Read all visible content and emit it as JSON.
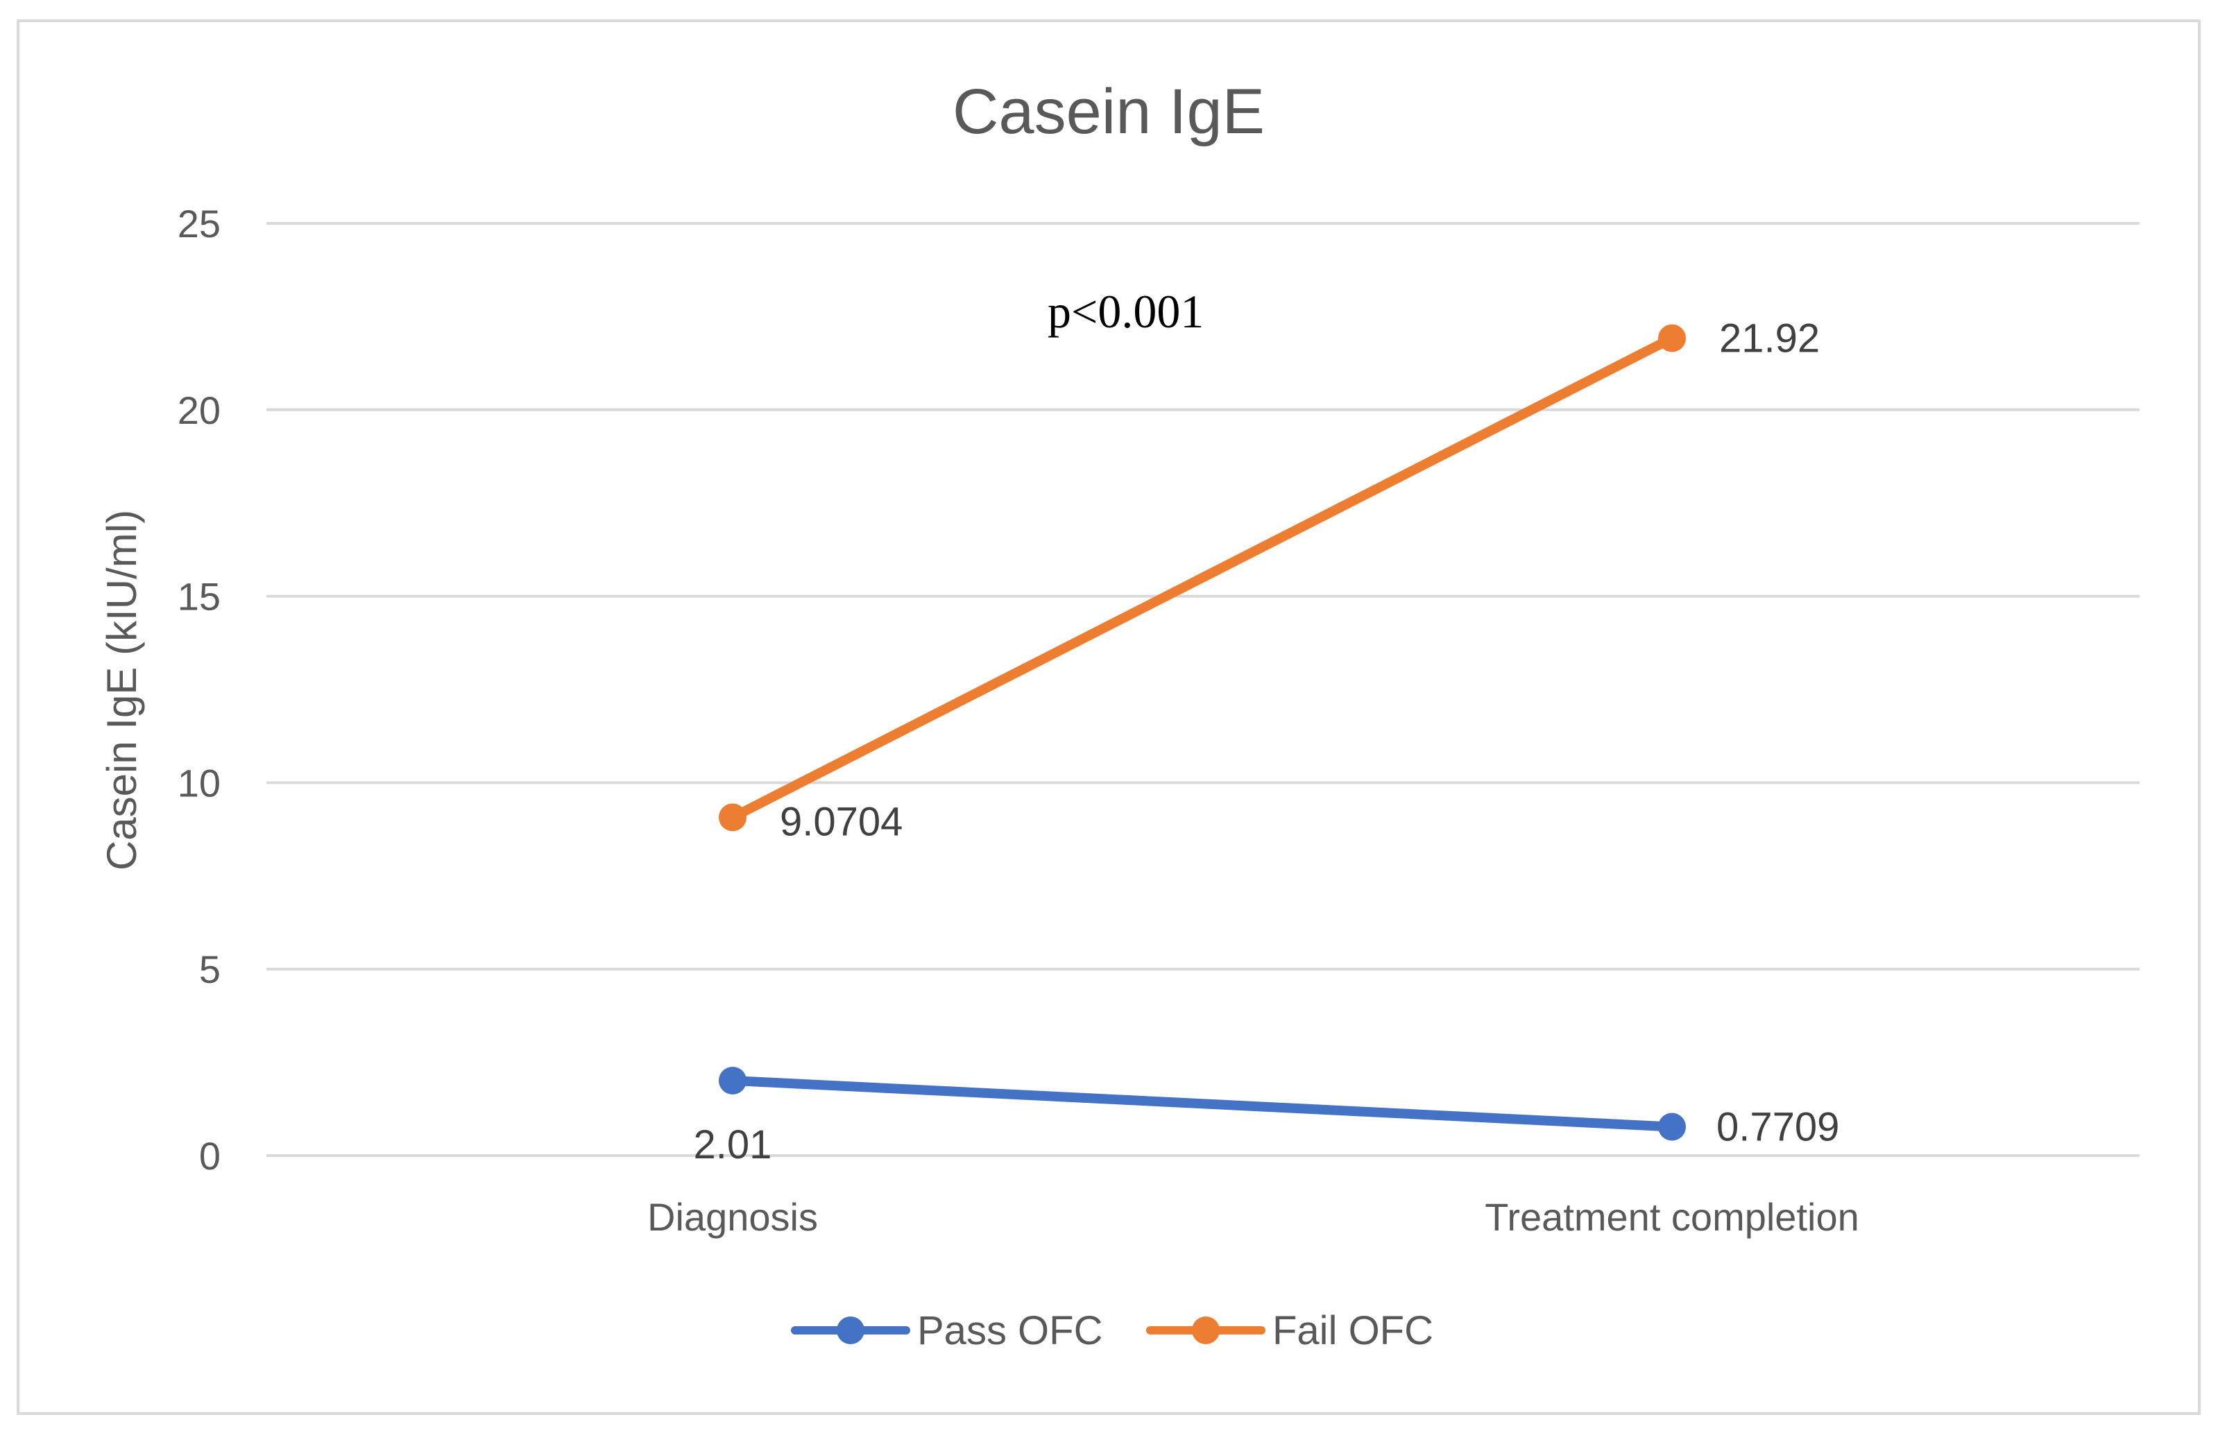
{
  "chart_data": {
    "type": "line",
    "title": "Casein IgE",
    "ylabel": "Casein IgE (kIU/ml)",
    "xlabel": "",
    "categories": [
      "Diagnosis",
      "Treatment completion"
    ],
    "ylim": [
      0,
      25
    ],
    "yticks": [
      0,
      5,
      10,
      15,
      20,
      25
    ],
    "grid": true,
    "legend_position": "bottom",
    "annotation": "p<0.001",
    "series": [
      {
        "name": "Pass OFC",
        "color": "#4472C4",
        "values": [
          2.01,
          0.7709
        ],
        "labels": [
          "2.01",
          "0.7709"
        ]
      },
      {
        "name": "Fail OFC",
        "color": "#ED7D31",
        "values": [
          9.0704,
          21.92
        ],
        "labels": [
          "9.0704",
          "21.92"
        ]
      }
    ]
  }
}
